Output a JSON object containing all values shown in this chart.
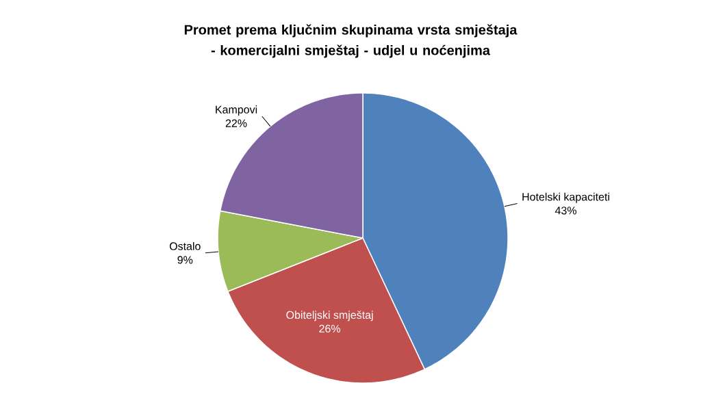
{
  "chart_data": {
    "type": "pie",
    "title": "Promet prema ključnim skupinama vrsta smještaja - komercijalni smještaj - udjel u noćenjima",
    "categories": [
      "Hotelski kapaciteti",
      "Obiteljski smještaj",
      "Ostalo",
      "Kampovi"
    ],
    "values": [
      43,
      26,
      9,
      22
    ],
    "value_labels": [
      "43%",
      "26%",
      "9%",
      "22%"
    ],
    "colors": [
      "#4f81bd",
      "#c0504d",
      "#9bbb59",
      "#8064a2"
    ]
  }
}
